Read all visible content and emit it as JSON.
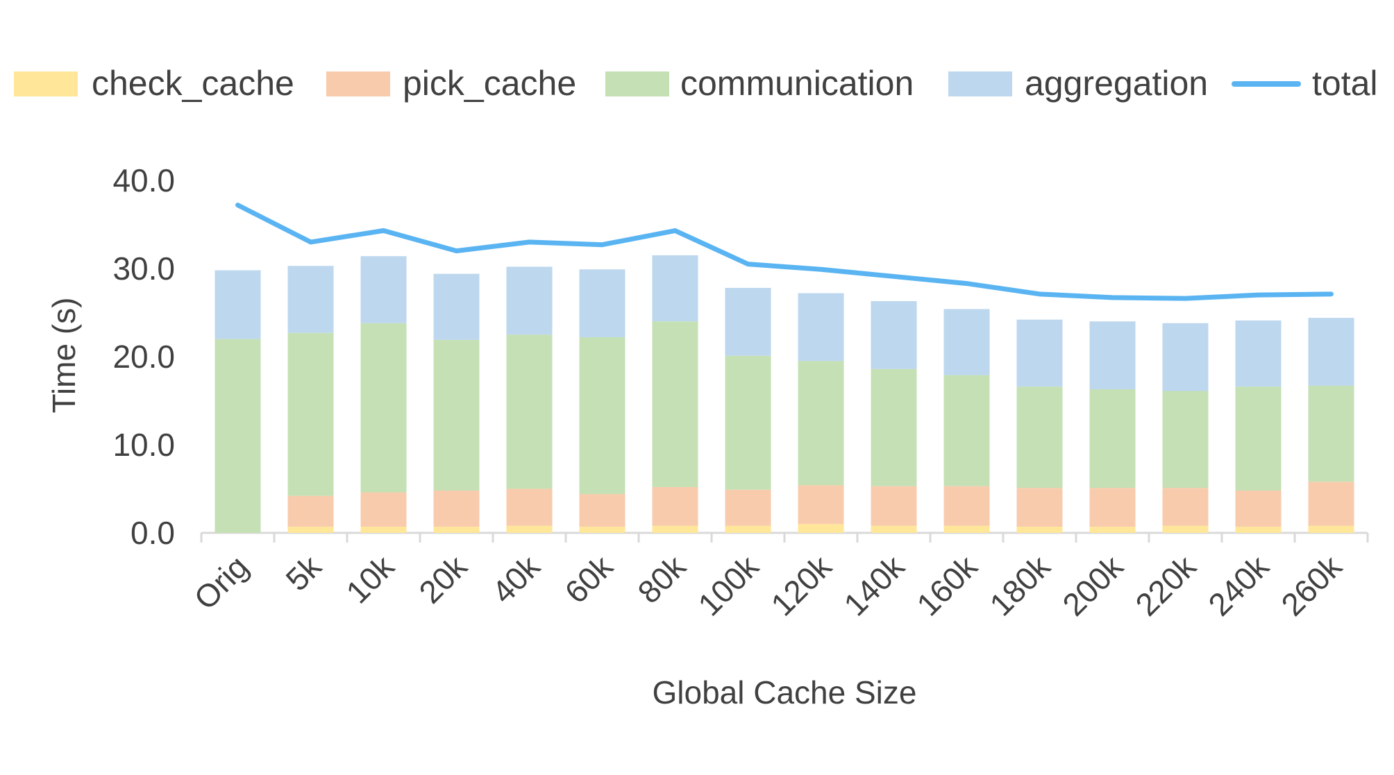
{
  "chart_data": {
    "type": "bar",
    "stacked": true,
    "title": "",
    "xlabel": "Global Cache Size",
    "ylabel": "Time (s)",
    "ylim": [
      0,
      40
    ],
    "yticks": [
      "0.0",
      "10.0",
      "20.0",
      "30.0",
      "40.0"
    ],
    "grid": false,
    "legend_position": "top",
    "categories": [
      "Orig",
      "5k",
      "10k",
      "20k",
      "40k",
      "60k",
      "80k",
      "100k",
      "120k",
      "140k",
      "160k",
      "180k",
      "200k",
      "220k",
      "240k",
      "260k"
    ],
    "series": [
      {
        "name": "check_cache",
        "kind": "bar",
        "color": "#FFE699",
        "values": [
          0.0,
          0.7,
          0.7,
          0.7,
          0.8,
          0.7,
          0.8,
          0.8,
          1.0,
          0.8,
          0.8,
          0.7,
          0.7,
          0.8,
          0.7,
          0.8
        ]
      },
      {
        "name": "pick_cache",
        "kind": "bar",
        "color": "#F8CBAD",
        "values": [
          0.0,
          3.5,
          3.9,
          4.1,
          4.2,
          3.7,
          4.4,
          4.1,
          4.4,
          4.5,
          4.5,
          4.4,
          4.4,
          4.3,
          4.1,
          5.0
        ]
      },
      {
        "name": "communication",
        "kind": "bar",
        "color": "#C5E0B4",
        "values": [
          22.0,
          18.5,
          19.2,
          17.1,
          17.5,
          17.8,
          18.8,
          15.2,
          14.1,
          13.3,
          12.6,
          11.5,
          11.2,
          11.0,
          11.8,
          10.9
        ]
      },
      {
        "name": "aggregation",
        "kind": "bar",
        "color": "#BDD7EE",
        "values": [
          7.8,
          7.6,
          7.6,
          7.5,
          7.7,
          7.7,
          7.5,
          7.7,
          7.7,
          7.7,
          7.5,
          7.6,
          7.7,
          7.7,
          7.5,
          7.7
        ]
      },
      {
        "name": "total",
        "kind": "line",
        "color": "#5AB4F2",
        "values": [
          37.2,
          33.0,
          34.3,
          32.0,
          33.0,
          32.7,
          34.3,
          30.5,
          29.9,
          29.1,
          28.3,
          27.1,
          26.7,
          26.6,
          27.0,
          27.1
        ]
      }
    ]
  }
}
